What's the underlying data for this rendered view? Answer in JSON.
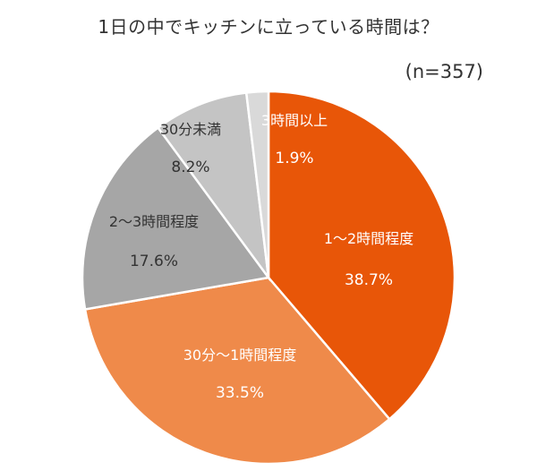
{
  "chart_data": {
    "type": "pie",
    "title": "1日の中でキッチンに立っている時間は？",
    "sample_note": "(n=357)",
    "slices": [
      {
        "label": "1～2時間程度",
        "value": 38.7,
        "pct_label": "38.7%",
        "color": "#e85608",
        "text_color": "#ffffff"
      },
      {
        "label": "30分～1時間程度",
        "value": 33.5,
        "pct_label": "33.5%",
        "color": "#ef8a4a",
        "text_color": "#ffffff"
      },
      {
        "label": "2～3時間程度",
        "value": 17.6,
        "pct_label": "17.6%",
        "color": "#a6a6a6",
        "text_color": "#333333"
      },
      {
        "label": "30分未満",
        "value": 8.2,
        "pct_label": "8.2%",
        "color": "#c4c4c4",
        "text_color": "#333333"
      },
      {
        "label": "3時間以上",
        "value": 1.9,
        "pct_label": "1.9%",
        "color": "#d9d9d9",
        "text_color": "#ffffff"
      }
    ],
    "start_angle_deg": 0,
    "direction": "clockwise"
  }
}
